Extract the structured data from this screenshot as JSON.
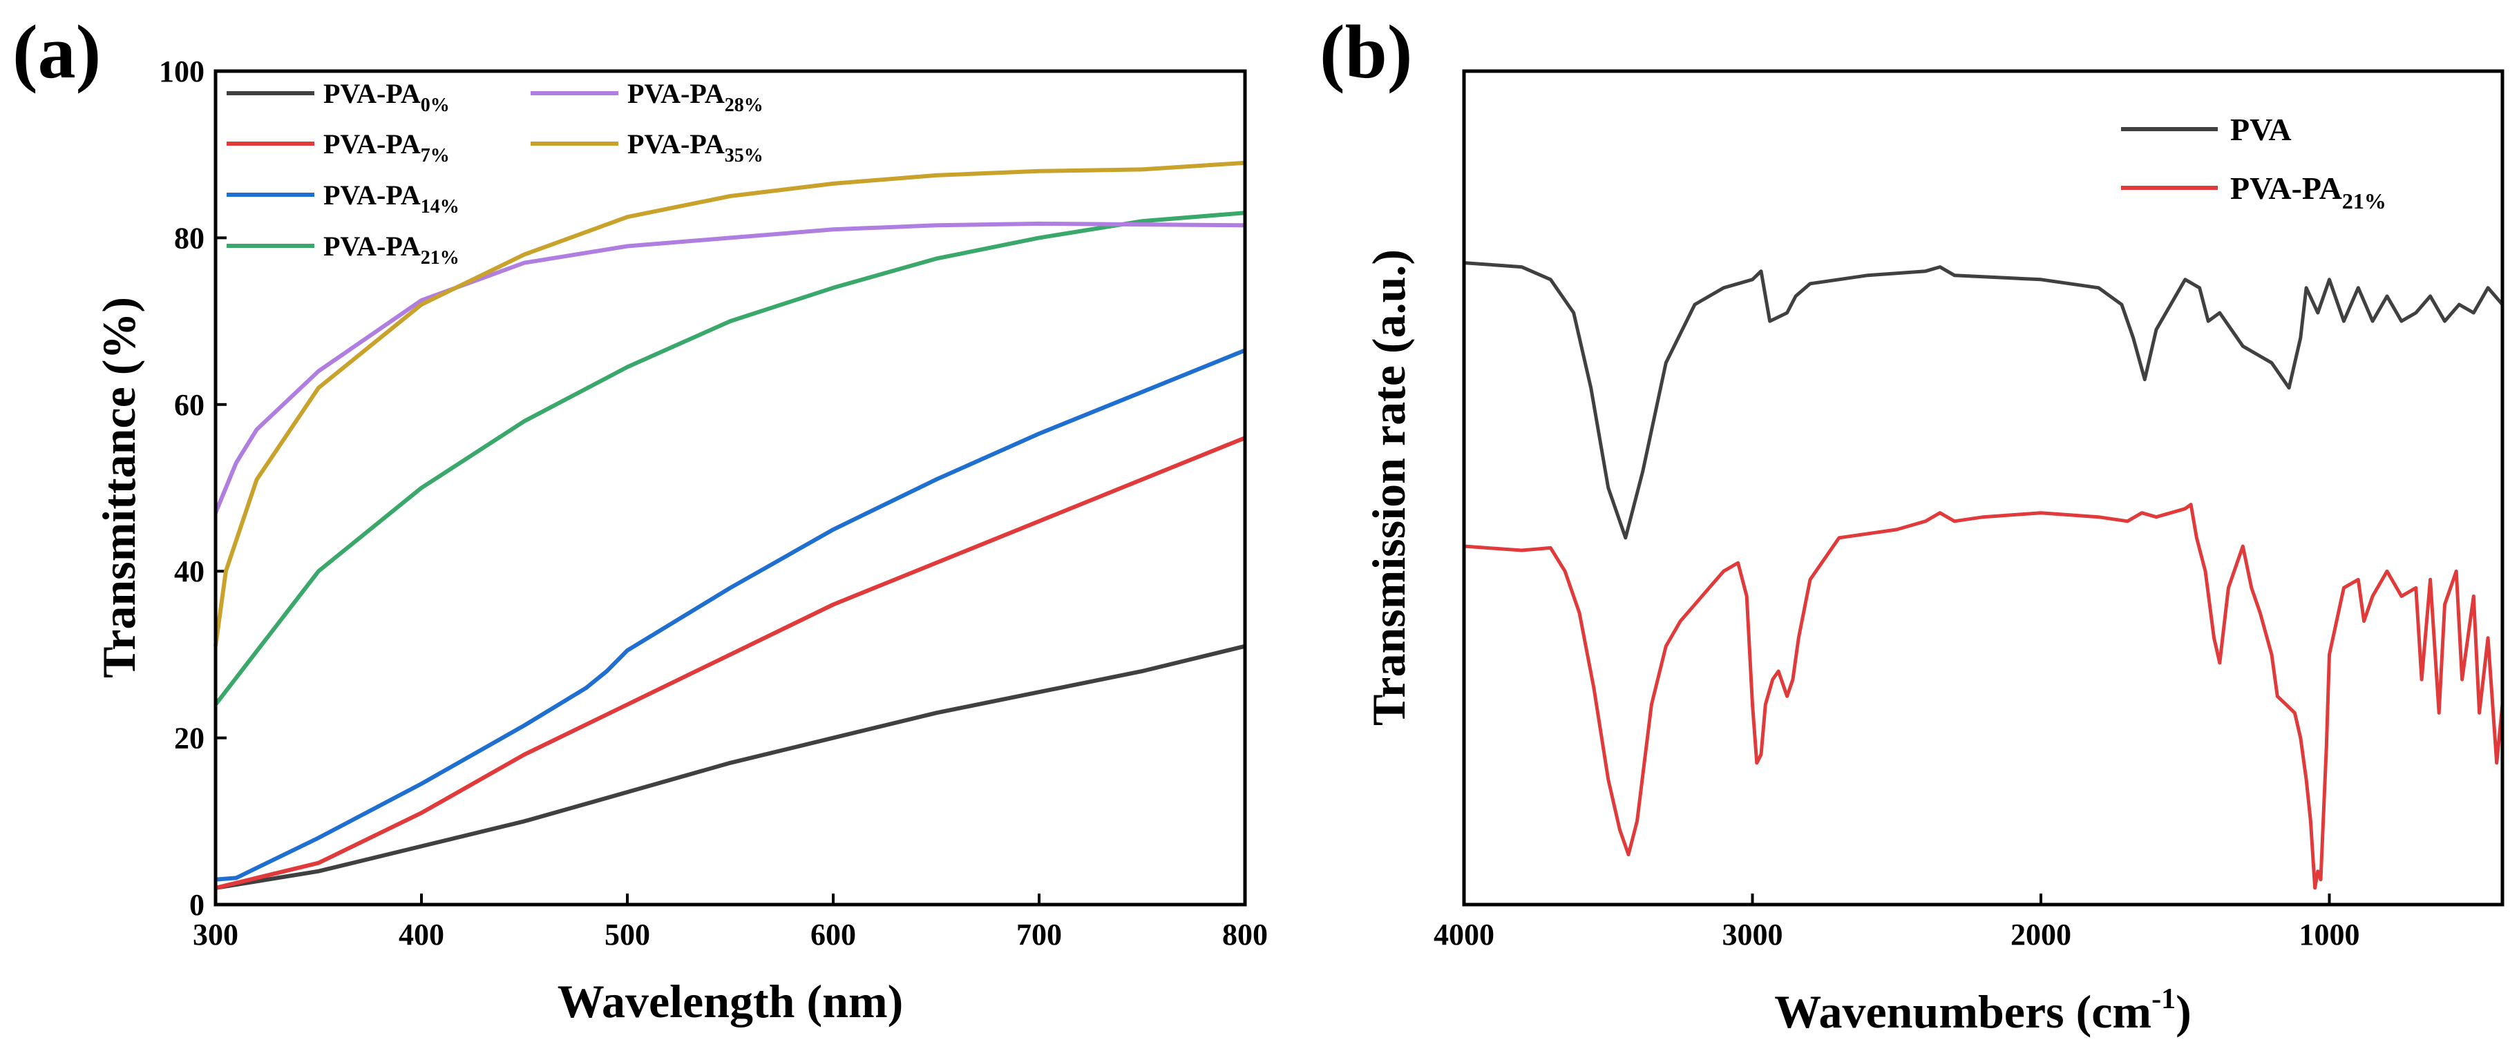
{
  "chart_data": [
    {
      "panel_label": "(a)",
      "type": "line",
      "xlabel": "Wavelength (nm)",
      "ylabel": "Transmittance (%)",
      "xlim": [
        300,
        800
      ],
      "ylim": [
        0,
        100
      ],
      "xticks": [
        "300",
        "400",
        "500",
        "600",
        "700",
        "800"
      ],
      "yticks": [
        "0",
        "20",
        "40",
        "60",
        "80",
        "100"
      ],
      "legend_position": "top-left",
      "series": [
        {
          "name": "PVA-PA",
          "sub": "0%",
          "color": "#404040",
          "x": [
            300,
            350,
            400,
            450,
            500,
            550,
            600,
            650,
            700,
            750,
            800
          ],
          "y": [
            2,
            4,
            7,
            10,
            13.5,
            17,
            20,
            23,
            25.5,
            28,
            31
          ]
        },
        {
          "name": "PVA-PA",
          "sub": "7%",
          "color": "#e03a3a",
          "x": [
            300,
            350,
            400,
            450,
            500,
            550,
            600,
            650,
            700,
            750,
            800
          ],
          "y": [
            2,
            5,
            11,
            18,
            24,
            30,
            36,
            41,
            46,
            51,
            56
          ]
        },
        {
          "name": "PVA-PA",
          "sub": "14%",
          "color": "#1f6fd1",
          "x": [
            300,
            310,
            350,
            400,
            450,
            480,
            490,
            500,
            550,
            600,
            650,
            700,
            750,
            800
          ],
          "y": [
            3,
            3.2,
            8,
            14.5,
            21.5,
            26,
            28,
            30.5,
            38,
            45,
            51,
            56.5,
            61.5,
            66.5
          ]
        },
        {
          "name": "PVA-PA",
          "sub": "21%",
          "color": "#3aa86b",
          "x": [
            300,
            350,
            400,
            450,
            500,
            550,
            600,
            650,
            700,
            750,
            800
          ],
          "y": [
            24,
            40,
            50,
            58,
            64.5,
            70,
            74,
            77.5,
            80,
            82,
            83
          ]
        },
        {
          "name": "PVA-PA",
          "sub": "28%",
          "color": "#b07ee0",
          "x": [
            300,
            310,
            320,
            350,
            400,
            450,
            500,
            550,
            600,
            650,
            700,
            750,
            800
          ],
          "y": [
            47,
            53,
            57,
            64,
            72.5,
            77,
            79,
            80,
            81,
            81.5,
            81.7,
            81.6,
            81.5
          ]
        },
        {
          "name": "PVA-PA",
          "sub": "35%",
          "color": "#c9a22c",
          "x": [
            300,
            305,
            320,
            350,
            400,
            450,
            500,
            550,
            600,
            650,
            700,
            750,
            800
          ],
          "y": [
            31,
            40,
            51,
            62,
            72,
            78,
            82.5,
            85,
            86.5,
            87.5,
            88,
            88.2,
            89
          ]
        }
      ]
    },
    {
      "panel_label": "(b)",
      "type": "line",
      "xlabel": "Wavenumbers (cm",
      "xlabel_sup": "-1",
      "xlabel_close": ")",
      "ylabel": "Transmission rate (a.u.)",
      "xlim": [
        4000,
        400
      ],
      "ylim": [
        0,
        100
      ],
      "xticks": [
        "4000",
        "3000",
        "2000",
        "1000"
      ],
      "xtick_values": [
        4000,
        3000,
        2000,
        1000
      ],
      "legend_position": "top-right",
      "series": [
        {
          "name": "PVA",
          "sub": "",
          "color": "#404040",
          "x": [
            4000,
            3800,
            3700,
            3620,
            3560,
            3500,
            3440,
            3380,
            3300,
            3200,
            3100,
            3000,
            2970,
            2940,
            2910,
            2880,
            2850,
            2800,
            2600,
            2400,
            2350,
            2300,
            2000,
            1800,
            1720,
            1680,
            1640,
            1600,
            1550,
            1500,
            1450,
            1420,
            1380,
            1340,
            1300,
            1250,
            1200,
            1140,
            1100,
            1080,
            1040,
            1000,
            950,
            900,
            850,
            800,
            750,
            700,
            650,
            600,
            550,
            500,
            450,
            400
          ],
          "y": [
            77,
            76.5,
            75,
            71,
            62,
            50,
            44,
            52,
            65,
            72,
            74,
            75,
            76,
            70,
            70.5,
            71,
            73,
            74.5,
            75.5,
            76,
            76.5,
            75.5,
            75,
            74,
            72,
            68,
            63,
            69,
            72,
            75,
            74,
            70,
            71,
            69,
            67,
            66,
            65,
            62,
            68,
            74,
            71,
            75,
            70,
            74,
            70,
            73,
            70,
            71,
            73,
            70,
            72,
            71,
            74,
            72
          ]
        },
        {
          "name": "PVA-PA",
          "sub": "21%",
          "color": "#e03a3a",
          "x": [
            4000,
            3800,
            3700,
            3650,
            3600,
            3550,
            3500,
            3460,
            3430,
            3400,
            3350,
            3300,
            3250,
            3200,
            3150,
            3100,
            3050,
            3020,
            3000,
            2985,
            2970,
            2955,
            2930,
            2910,
            2880,
            2860,
            2840,
            2800,
            2700,
            2500,
            2400,
            2350,
            2300,
            2200,
            2000,
            1800,
            1700,
            1650,
            1600,
            1550,
            1500,
            1480,
            1460,
            1430,
            1400,
            1380,
            1350,
            1300,
            1270,
            1240,
            1200,
            1180,
            1150,
            1120,
            1100,
            1080,
            1065,
            1050,
            1040,
            1030,
            1010,
            1000,
            950,
            900,
            880,
            850,
            800,
            750,
            700,
            680,
            650,
            620,
            600,
            560,
            540,
            500,
            480,
            450,
            420,
            400
          ],
          "y": [
            43,
            42.5,
            42.8,
            40,
            35,
            26,
            15,
            9,
            6,
            10,
            24,
            31,
            34,
            36,
            38,
            40,
            41,
            37,
            24,
            17,
            18,
            24,
            27,
            28,
            25,
            27,
            32,
            39,
            44,
            45,
            46,
            47,
            46,
            46.5,
            47,
            46.5,
            46,
            47,
            46.5,
            47,
            47.5,
            48,
            44,
            40,
            32,
            29,
            38,
            43,
            38,
            35,
            30,
            25,
            24,
            23,
            20,
            15,
            10,
            2,
            4,
            3,
            19,
            30,
            38,
            39,
            34,
            37,
            40,
            37,
            38,
            27,
            39,
            23,
            36,
            40,
            27,
            37,
            23,
            32,
            17,
            24
          ]
        }
      ]
    }
  ]
}
